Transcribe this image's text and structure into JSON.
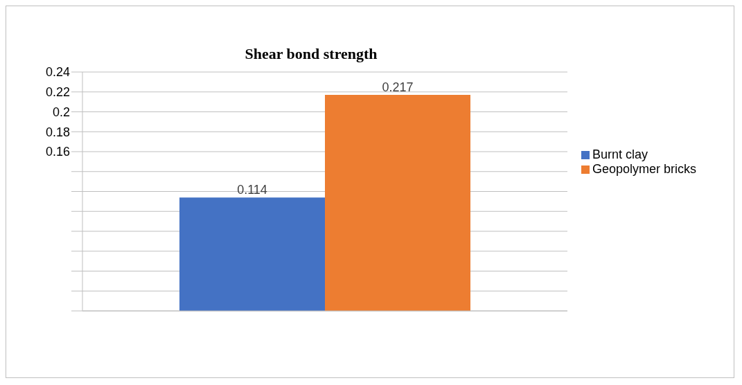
{
  "chart_data": {
    "type": "bar",
    "title": "Shear bond strength",
    "categories": [
      null
    ],
    "series": [
      {
        "name": "Burnt clay",
        "color": "#4472c4",
        "values": [
          0.114
        ]
      },
      {
        "name": "Geopolymer bricks",
        "color": "#ed7d31",
        "values": [
          0.217
        ]
      }
    ],
    "ylim": [
      0,
      0.24
    ],
    "yticks": [
      {
        "value": 0,
        "label": null
      },
      {
        "value": 0.02,
        "label": null
      },
      {
        "value": 0.04,
        "label": null
      },
      {
        "value": 0.06,
        "label": null
      },
      {
        "value": 0.08,
        "label": null
      },
      {
        "value": 0.1,
        "label": null
      },
      {
        "value": 0.12,
        "label": null
      },
      {
        "value": 0.14,
        "label": null
      },
      {
        "value": 0.16,
        "label": "0.16"
      },
      {
        "value": 0.18,
        "label": "0.18"
      },
      {
        "value": 0.2,
        "label": "0.2"
      },
      {
        "value": 0.22,
        "label": "0.22"
      },
      {
        "value": 0.24,
        "label": "0.24"
      }
    ],
    "grid": "y",
    "legend": "right",
    "data_labels": true
  }
}
